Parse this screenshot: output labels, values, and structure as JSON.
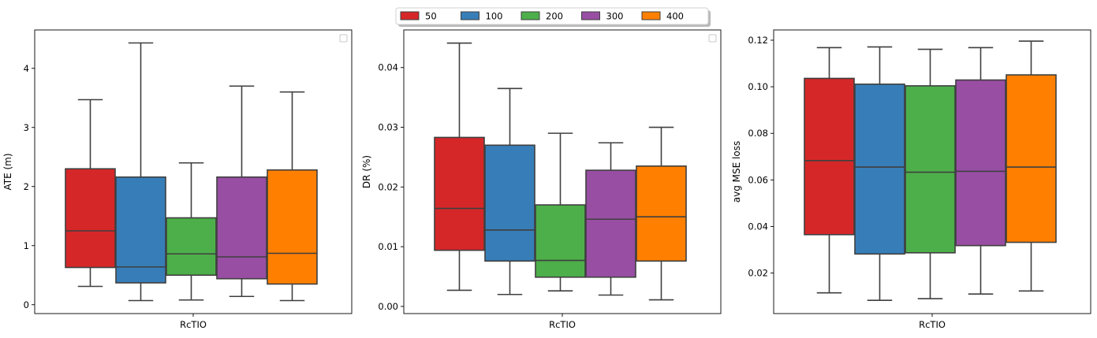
{
  "colors": {
    "50": "#d62728",
    "100": "#377eb8",
    "200": "#4daf4a",
    "300": "#984ea3",
    "400": "#ff7f00",
    "box_edge": "#3f3f3f"
  },
  "legend": {
    "placement": "top-center",
    "entries": [
      "50",
      "100",
      "200",
      "300",
      "400"
    ]
  },
  "chart_data": [
    {
      "type": "box",
      "xlabel": "RcTIO",
      "ylabel": "ATE (m)",
      "ylim": [
        -0.15,
        4.65
      ],
      "yticks": [
        0,
        1,
        2,
        3,
        4
      ],
      "ytick_labels": [
        "0",
        "1",
        "2",
        "3",
        "4"
      ],
      "legend": "top-right (empty)",
      "grid": false,
      "category": "RcTIO",
      "series": [
        {
          "name": "50",
          "whisker_low": 0.31,
          "q1": 0.63,
          "median": 1.25,
          "q3": 2.3,
          "whisker_high": 3.47
        },
        {
          "name": "100",
          "whisker_low": 0.07,
          "q1": 0.37,
          "median": 0.64,
          "q3": 2.16,
          "whisker_high": 4.43
        },
        {
          "name": "200",
          "whisker_low": 0.08,
          "q1": 0.5,
          "median": 0.86,
          "q3": 1.47,
          "whisker_high": 2.4
        },
        {
          "name": "300",
          "whisker_low": 0.14,
          "q1": 0.44,
          "median": 0.81,
          "q3": 2.16,
          "whisker_high": 3.7
        },
        {
          "name": "400",
          "whisker_low": 0.07,
          "q1": 0.35,
          "median": 0.87,
          "q3": 2.28,
          "whisker_high": 3.6
        }
      ]
    },
    {
      "type": "box",
      "xlabel": "RcTIO",
      "ylabel": "DR (%)",
      "ylim": [
        -0.0012,
        0.0463
      ],
      "yticks": [
        0.0,
        0.01,
        0.02,
        0.03,
        0.04
      ],
      "ytick_labels": [
        "0.00",
        "0.01",
        "0.02",
        "0.03",
        "0.04"
      ],
      "legend": "top-right (empty)",
      "grid": false,
      "category": "RcTIO",
      "series": [
        {
          "name": "50",
          "whisker_low": 0.0027,
          "q1": 0.0094,
          "median": 0.0164,
          "q3": 0.0283,
          "whisker_high": 0.0441
        },
        {
          "name": "100",
          "whisker_low": 0.002,
          "q1": 0.0076,
          "median": 0.0128,
          "q3": 0.027,
          "whisker_high": 0.0365
        },
        {
          "name": "200",
          "whisker_low": 0.0026,
          "q1": 0.0049,
          "median": 0.0077,
          "q3": 0.017,
          "whisker_high": 0.029
        },
        {
          "name": "300",
          "whisker_low": 0.0019,
          "q1": 0.0049,
          "median": 0.0146,
          "q3": 0.0228,
          "whisker_high": 0.0274
        },
        {
          "name": "400",
          "whisker_low": 0.0011,
          "q1": 0.0076,
          "median": 0.015,
          "q3": 0.0235,
          "whisker_high": 0.03
        }
      ]
    },
    {
      "type": "box",
      "xlabel": "RcTIO",
      "ylabel": "avg MSE loss",
      "ylim": [
        0.0026,
        0.1244
      ],
      "yticks": [
        0.02,
        0.04,
        0.06,
        0.08,
        0.1,
        0.12
      ],
      "ytick_labels": [
        "0.02",
        "0.04",
        "0.06",
        "0.08",
        "0.10",
        "0.12"
      ],
      "grid": false,
      "category": "RcTIO",
      "series": [
        {
          "name": "50",
          "whisker_low": 0.0115,
          "q1": 0.0365,
          "median": 0.0683,
          "q3": 0.1036,
          "whisker_high": 0.1168
        },
        {
          "name": "100",
          "whisker_low": 0.0083,
          "q1": 0.0282,
          "median": 0.0655,
          "q3": 0.1011,
          "whisker_high": 0.1171
        },
        {
          "name": "200",
          "whisker_low": 0.009,
          "q1": 0.0287,
          "median": 0.0633,
          "q3": 0.1004,
          "whisker_high": 0.1161
        },
        {
          "name": "300",
          "whisker_low": 0.011,
          "q1": 0.0318,
          "median": 0.0637,
          "q3": 0.1029,
          "whisker_high": 0.1168
        },
        {
          "name": "400",
          "whisker_low": 0.0123,
          "q1": 0.0332,
          "median": 0.0655,
          "q3": 0.1051,
          "whisker_high": 0.1196
        }
      ]
    }
  ]
}
